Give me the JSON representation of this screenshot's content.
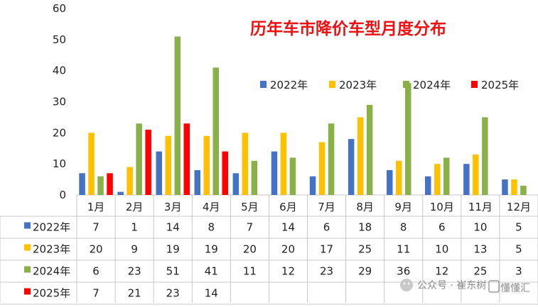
{
  "chart_data": {
    "type": "bar",
    "title": "历年车市降价车型月度分布",
    "categories": [
      "1月",
      "2月",
      "3月",
      "4月",
      "5月",
      "6月",
      "7月",
      "8月",
      "9月",
      "10月",
      "11月",
      "12月"
    ],
    "ylim": [
      0,
      60
    ],
    "yticks": [
      0,
      10,
      20,
      30,
      40,
      50,
      60
    ],
    "grid": false,
    "legend_position": "right",
    "series": [
      {
        "name": "2022年",
        "color": "#4472c4",
        "values": [
          7,
          1,
          14,
          8,
          7,
          14,
          6,
          18,
          8,
          6,
          10,
          5
        ]
      },
      {
        "name": "2023年",
        "color": "#ffc000",
        "values": [
          20,
          9,
          19,
          19,
          20,
          20,
          17,
          25,
          11,
          10,
          13,
          5
        ]
      },
      {
        "name": "2024年",
        "color": "#8ab04a",
        "values": [
          6,
          23,
          51,
          41,
          11,
          12,
          23,
          29,
          36,
          12,
          25,
          3
        ]
      },
      {
        "name": "2025年",
        "color": "#ff0000",
        "values": [
          7,
          21,
          23,
          14,
          null,
          null,
          null,
          null,
          null,
          null,
          null,
          null
        ]
      }
    ],
    "data_table": true
  },
  "watermark": {
    "text": "公众号 · 崔东树",
    "logo_text": "懂懂汇"
  }
}
